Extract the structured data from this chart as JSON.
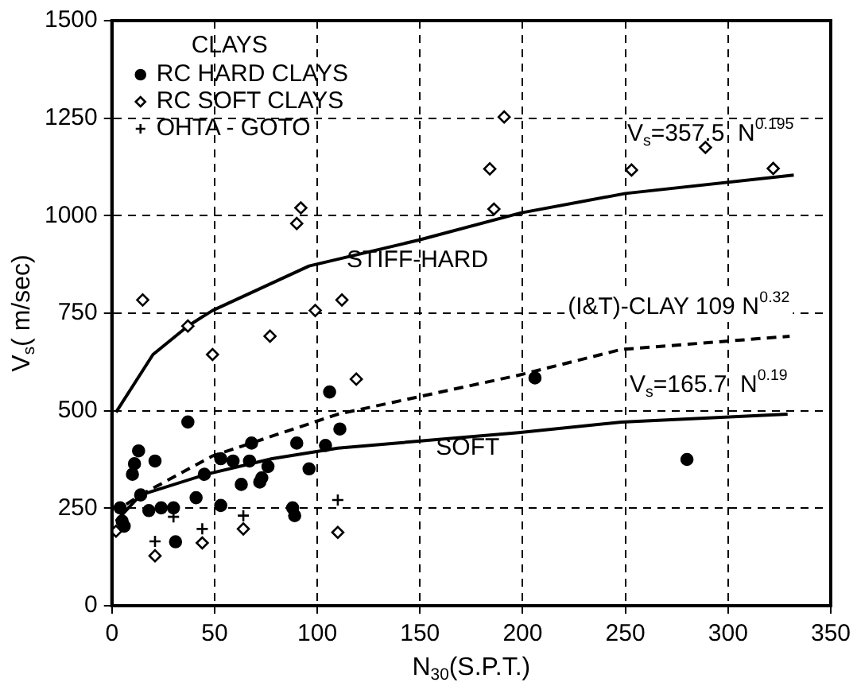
{
  "chart_data": {
    "type": "scatter",
    "xlabel": "N$_{30}$(S.P.T.)",
    "ylabel": "V$_{s}$( m/sec)",
    "legend_title": "CLAYS",
    "legend": "top left",
    "grid": true,
    "xlim": [
      0,
      350
    ],
    "xticks": [
      0,
      50,
      100,
      150,
      200,
      250,
      300,
      350
    ],
    "ylim": [
      0,
      1500
    ],
    "yticks": [
      0,
      250,
      500,
      750,
      1000,
      1250,
      1500
    ],
    "series": [
      {
        "name": "RC HARD CLAYS",
        "marker": "circle",
        "color": "#000000",
        "x": [
          37,
          13,
          11,
          10,
          21,
          14,
          4,
          5,
          6,
          18,
          24,
          30,
          31,
          41,
          45,
          53,
          53,
          59,
          63,
          67,
          68,
          72,
          73,
          76,
          90,
          88,
          89,
          96,
          106,
          104,
          111,
          206,
          280
        ],
        "values": [
          471,
          397,
          364,
          337,
          371,
          284,
          251,
          217,
          204,
          244,
          251,
          251,
          164,
          277,
          337,
          377,
          257,
          371,
          311,
          371,
          417,
          317,
          328,
          357,
          417,
          251,
          231,
          351,
          548,
          411,
          453,
          584,
          375
        ]
      },
      {
        "name": "RC SOFT CLAYS",
        "marker": "diamond",
        "color": "#000000",
        "x": [
          15,
          92,
          90,
          112,
          184,
          191,
          186,
          253,
          289,
          322,
          37,
          49,
          77,
          99,
          119,
          2,
          21,
          44,
          64,
          110
        ],
        "values": [
          784,
          1020,
          980,
          784,
          1120,
          1253,
          1017,
          1117,
          1175,
          1121,
          717,
          644,
          691,
          757,
          581,
          191,
          128,
          161,
          197,
          188
        ]
      },
      {
        "name": "OHTA - GOTO",
        "marker": "cross",
        "color": "#000000",
        "x": [
          21,
          30,
          44,
          64,
          110
        ],
        "values": [
          165,
          228,
          197,
          231,
          271
        ]
      },
      {
        "name": "V$_{s}$=357.5  N$^{0.195}$",
        "type": "line",
        "marker": "none",
        "line_style": "solid",
        "color": "#000000",
        "x": [
          2,
          20,
          37,
          49,
          96,
          149,
          199,
          250,
          332
        ],
        "values": [
          496,
          644,
          717,
          757,
          871,
          937,
          1007,
          1057,
          1104
        ]
      },
      {
        "name": "(I&T)-CLAY 109 N$^{0.32}$",
        "type": "line",
        "marker": "none",
        "line_style": "dashed",
        "color": "#000000",
        "x": [
          7,
          14,
          49,
          110,
          198,
          248,
          330
        ],
        "values": [
          260,
          284,
          384,
          491,
          591,
          657,
          691
        ]
      },
      {
        "name": "V$_{s}$=165.7  N$^{0.19}$",
        "type": "line",
        "marker": "none",
        "line_style": "solid",
        "color": "#000000",
        "x": [
          2,
          14,
          46,
          78,
          110,
          198,
          248,
          329
        ],
        "values": [
          217,
          284,
          337,
          377,
          404,
          444,
          471,
          491
        ]
      }
    ],
    "annotations": [
      "STIFF-HARD",
      "SOFT"
    ]
  }
}
